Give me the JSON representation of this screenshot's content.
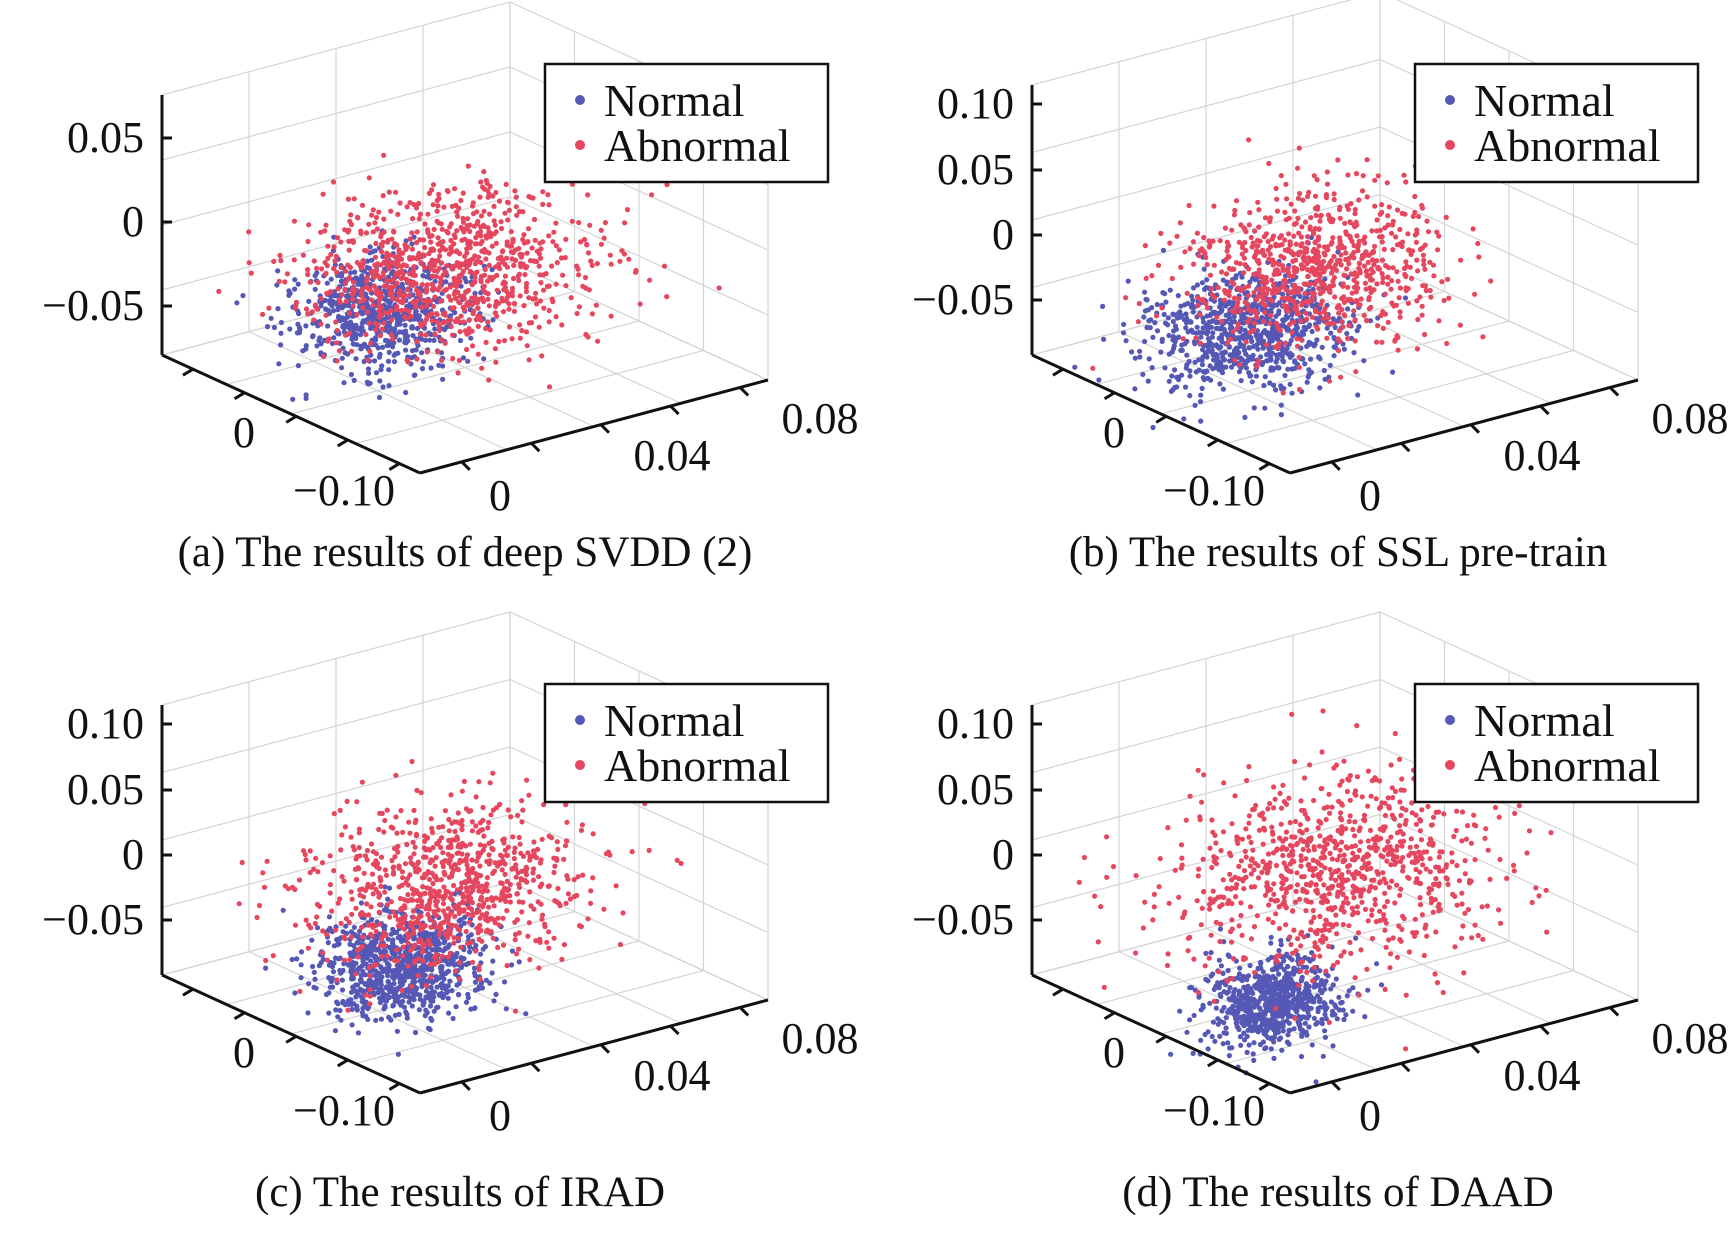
{
  "colors": {
    "normal": "#5558b5",
    "abnormal": "#e5475f",
    "grid": "#d4d4d4",
    "axis": "#111111"
  },
  "chart_data": [
    {
      "type": "scatter",
      "dimensions": 3,
      "caption": "(a) The results of deep SVDD (2)",
      "legend": {
        "placement": "top-right",
        "entries": [
          "Normal",
          "Abnormal"
        ]
      },
      "grid": true,
      "z_ticks": [
        "−0.05",
        "0",
        "0.05"
      ],
      "x_ticks": [
        "−0.10",
        "0"
      ],
      "y_ticks": [
        "0",
        "0.04",
        "0.08"
      ],
      "zlim": [
        -0.08,
        0.08
      ],
      "xlim": [
        -0.15,
        0.05
      ],
      "ylim": [
        -0.02,
        0.1
      ],
      "series": [
        {
          "name": "Normal",
          "count": 700,
          "mean": {
            "x": 0.0,
            "y": -0.01,
            "z": -0.005
          },
          "std": {
            "x": 0.02,
            "y": 0.012,
            "z": 0.015
          }
        },
        {
          "name": "Abnormal",
          "count": 900,
          "mean": {
            "x": -0.02,
            "y": 0.02,
            "z": 0.0
          },
          "std": {
            "x": 0.03,
            "y": 0.022,
            "z": 0.02
          }
        }
      ]
    },
    {
      "type": "scatter",
      "dimensions": 3,
      "caption": "(b) The results of SSL pre-train",
      "legend": {
        "placement": "top-right",
        "entries": [
          "Normal",
          "Abnormal"
        ]
      },
      "grid": true,
      "z_ticks": [
        "−0.05",
        "0",
        "0.05",
        "0.10"
      ],
      "x_ticks": [
        "−0.10",
        "0"
      ],
      "y_ticks": [
        "0",
        "0.04",
        "0.08"
      ],
      "zlim": [
        -0.1,
        0.12
      ],
      "xlim": [
        -0.15,
        0.05
      ],
      "ylim": [
        -0.02,
        0.1
      ],
      "series": [
        {
          "name": "Normal",
          "count": 800,
          "mean": {
            "x": -0.03,
            "y": 0.0,
            "z": -0.035
          },
          "std": {
            "x": 0.02,
            "y": 0.015,
            "z": 0.02
          }
        },
        {
          "name": "Abnormal",
          "count": 800,
          "mean": {
            "x": -0.01,
            "y": 0.015,
            "z": 0.015
          },
          "std": {
            "x": 0.025,
            "y": 0.02,
            "z": 0.03
          }
        }
      ]
    },
    {
      "type": "scatter",
      "dimensions": 3,
      "caption": "(c) The results of IRAD",
      "legend": {
        "placement": "top-right",
        "entries": [
          "Normal",
          "Abnormal"
        ]
      },
      "grid": true,
      "z_ticks": [
        "−0.05",
        "0",
        "0.05",
        "0.10"
      ],
      "x_ticks": [
        "−0.10",
        "0"
      ],
      "y_ticks": [
        "0",
        "0.04",
        "0.08"
      ],
      "zlim": [
        -0.1,
        0.12
      ],
      "xlim": [
        -0.15,
        0.05
      ],
      "ylim": [
        -0.02,
        0.1
      ],
      "series": [
        {
          "name": "Normal",
          "count": 850,
          "mean": {
            "x": 0.0,
            "y": -0.005,
            "z": -0.03
          },
          "std": {
            "x": 0.018,
            "y": 0.012,
            "z": 0.02
          }
        },
        {
          "name": "Abnormal",
          "count": 850,
          "mean": {
            "x": -0.01,
            "y": 0.015,
            "z": 0.015
          },
          "std": {
            "x": 0.025,
            "y": 0.02,
            "z": 0.03
          }
        }
      ]
    },
    {
      "type": "scatter",
      "dimensions": 3,
      "caption": "(d) The results of DAAD",
      "legend": {
        "placement": "top-right",
        "entries": [
          "Normal",
          "Abnormal"
        ]
      },
      "grid": true,
      "z_ticks": [
        "−0.05",
        "0",
        "0.05",
        "0.10"
      ],
      "x_ticks": [
        "−0.10",
        "0"
      ],
      "y_ticks": [
        "0",
        "0.04",
        "0.08"
      ],
      "zlim": [
        -0.1,
        0.12
      ],
      "xlim": [
        -0.15,
        0.05
      ],
      "ylim": [
        -0.02,
        0.1
      ],
      "series": [
        {
          "name": "Normal",
          "count": 700,
          "mean": {
            "x": 0.025,
            "y": -0.015,
            "z": -0.04
          },
          "std": {
            "x": 0.012,
            "y": 0.01,
            "z": 0.018
          }
        },
        {
          "name": "Abnormal",
          "count": 900,
          "mean": {
            "x": -0.02,
            "y": 0.025,
            "z": 0.02
          },
          "std": {
            "x": 0.03,
            "y": 0.025,
            "z": 0.035
          }
        }
      ]
    }
  ]
}
